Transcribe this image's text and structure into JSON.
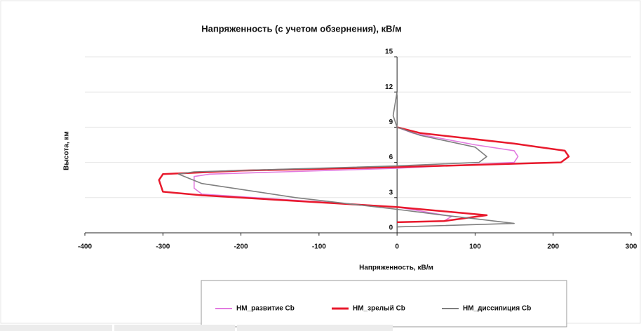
{
  "chart_data": {
    "type": "line",
    "title": "Напряженность (с учетом обзернения), кВ/м",
    "x_label": "Напряженность, кВ/м",
    "y_label": "Высота, км",
    "xlim": [
      -400,
      300
    ],
    "xticks": [
      -400,
      -300,
      -200,
      -100,
      0,
      100,
      200,
      300
    ],
    "ylim": [
      0,
      15
    ],
    "yticks": [
      0,
      3,
      6,
      9,
      12,
      15
    ],
    "grid": true,
    "legend": "bottom",
    "series": [
      {
        "name": "НМ_развитие Cb",
        "color": "#e27be0",
        "x": [
          0,
          60,
          70,
          0,
          -250,
          -260,
          -260,
          -240,
          0,
          150,
          155,
          150,
          100,
          20,
          0
        ],
        "values": [
          0.9,
          1.0,
          1.4,
          2.2,
          3.3,
          3.8,
          4.8,
          5.0,
          5.5,
          6.0,
          6.5,
          7.0,
          7.5,
          8.5,
          9.0
        ]
      },
      {
        "name": "НМ_зрелый Cb",
        "color": "#e8192c",
        "x": [
          0,
          60,
          115,
          0,
          -250,
          -300,
          -305,
          -300,
          -200,
          0,
          210,
          220,
          215,
          150,
          30,
          0
        ],
        "values": [
          0.9,
          1.0,
          1.5,
          2.2,
          3.2,
          3.5,
          4.5,
          5.0,
          5.3,
          5.6,
          6.0,
          6.5,
          7.0,
          7.6,
          8.5,
          9.0
        ]
      },
      {
        "name": "НМ_диссипиция Cb",
        "color": "#7f7f7f",
        "x": [
          0,
          150,
          100,
          60,
          0,
          -130,
          -250,
          -280,
          -260,
          0,
          105,
          115,
          100,
          30,
          0,
          -5,
          0
        ],
        "values": [
          0.5,
          0.8,
          1.2,
          1.5,
          2.0,
          3.0,
          4.2,
          5.0,
          5.2,
          5.7,
          6.0,
          6.5,
          7.3,
          8.3,
          9.0,
          10.0,
          12.0
        ]
      }
    ]
  }
}
